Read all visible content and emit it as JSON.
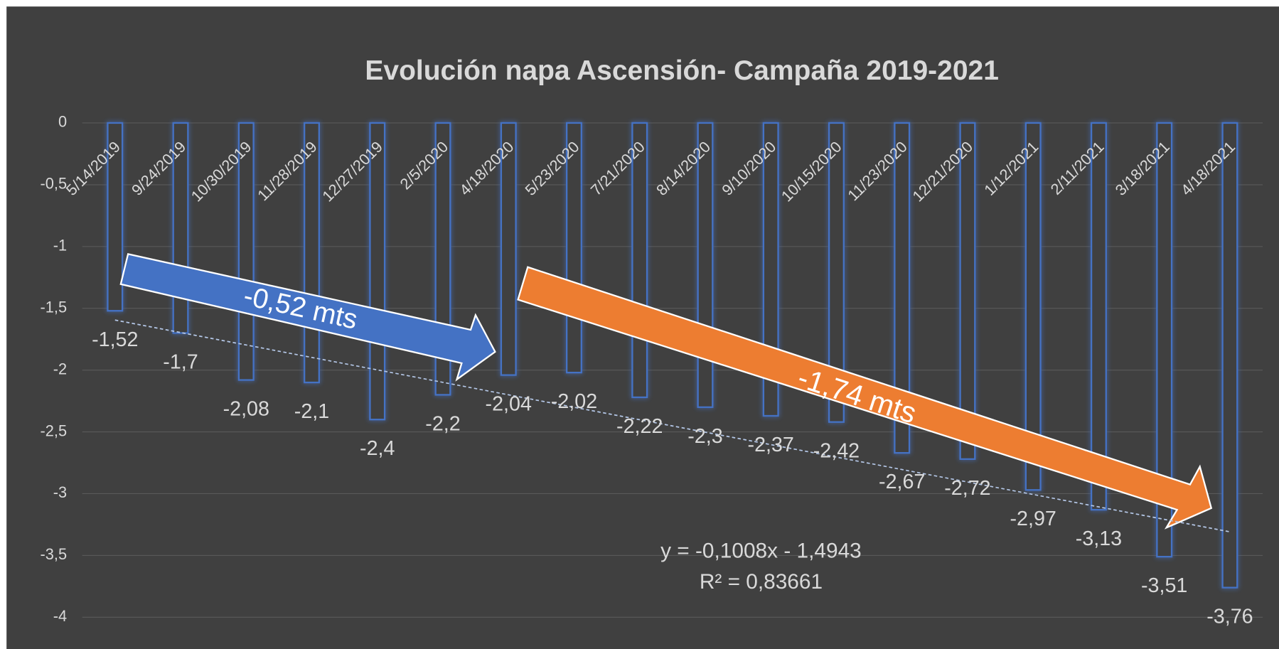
{
  "chart_data": {
    "type": "bar",
    "title": "Evolución napa Ascensión- Campaña 2019-2021",
    "categories": [
      "5/14/2019",
      "9/24/2019",
      "10/30/2019",
      "11/28/2019",
      "12/27/2019",
      "2/5/2020",
      "4/18/2020",
      "5/23/2020",
      "7/21/2020",
      "8/14/2020",
      "9/10/2020",
      "10/15/2020",
      "11/23/2020",
      "12/21/2020",
      "1/12/2021",
      "2/11/2021",
      "3/18/2021",
      "4/18/2021"
    ],
    "values": [
      -1.52,
      -1.7,
      -2.08,
      -2.1,
      -2.4,
      -2.2,
      -2.04,
      -2.02,
      -2.22,
      -2.3,
      -2.37,
      -2.42,
      -2.67,
      -2.72,
      -2.97,
      -3.13,
      -3.51,
      -3.76
    ],
    "value_labels": [
      "-1,52",
      "-1,7",
      "-2,08",
      "-2,1",
      "-2,4",
      "-2,2",
      "-2,04",
      "-2,02",
      "-2,22",
      "-2,3",
      "-2,37",
      "-2,42",
      "-2,67",
      "-2,72",
      "-2,97",
      "-3,13",
      "-3,51",
      "-3,76"
    ],
    "color": "#4472c4",
    "ylim": [
      -4,
      0
    ],
    "yticks": [
      {
        "value": -4,
        "label": "-4"
      },
      {
        "value": -3.5,
        "label": "-3,5"
      },
      {
        "value": -3,
        "label": "-3"
      },
      {
        "value": -2.5,
        "label": "-2,5"
      },
      {
        "value": -2,
        "label": "-2"
      },
      {
        "value": -1.5,
        "label": "-1,5"
      },
      {
        "value": -1,
        "label": "-1"
      },
      {
        "value": -0.5,
        "label": "-0,5"
      },
      {
        "value": 0,
        "label": "0"
      }
    ],
    "grid": true,
    "trendline": {
      "slope": -0.1008,
      "intercept": -1.4943,
      "r2": 0.83661,
      "equation_label": "y = -0,1008x - 1,4943",
      "r2_label": "R² = 0,83661"
    },
    "annotations": [
      {
        "text": "-0,52 mts",
        "color": "#4472c4"
      },
      {
        "text": "-1,74 mts",
        "color": "#ed7d31"
      }
    ]
  }
}
